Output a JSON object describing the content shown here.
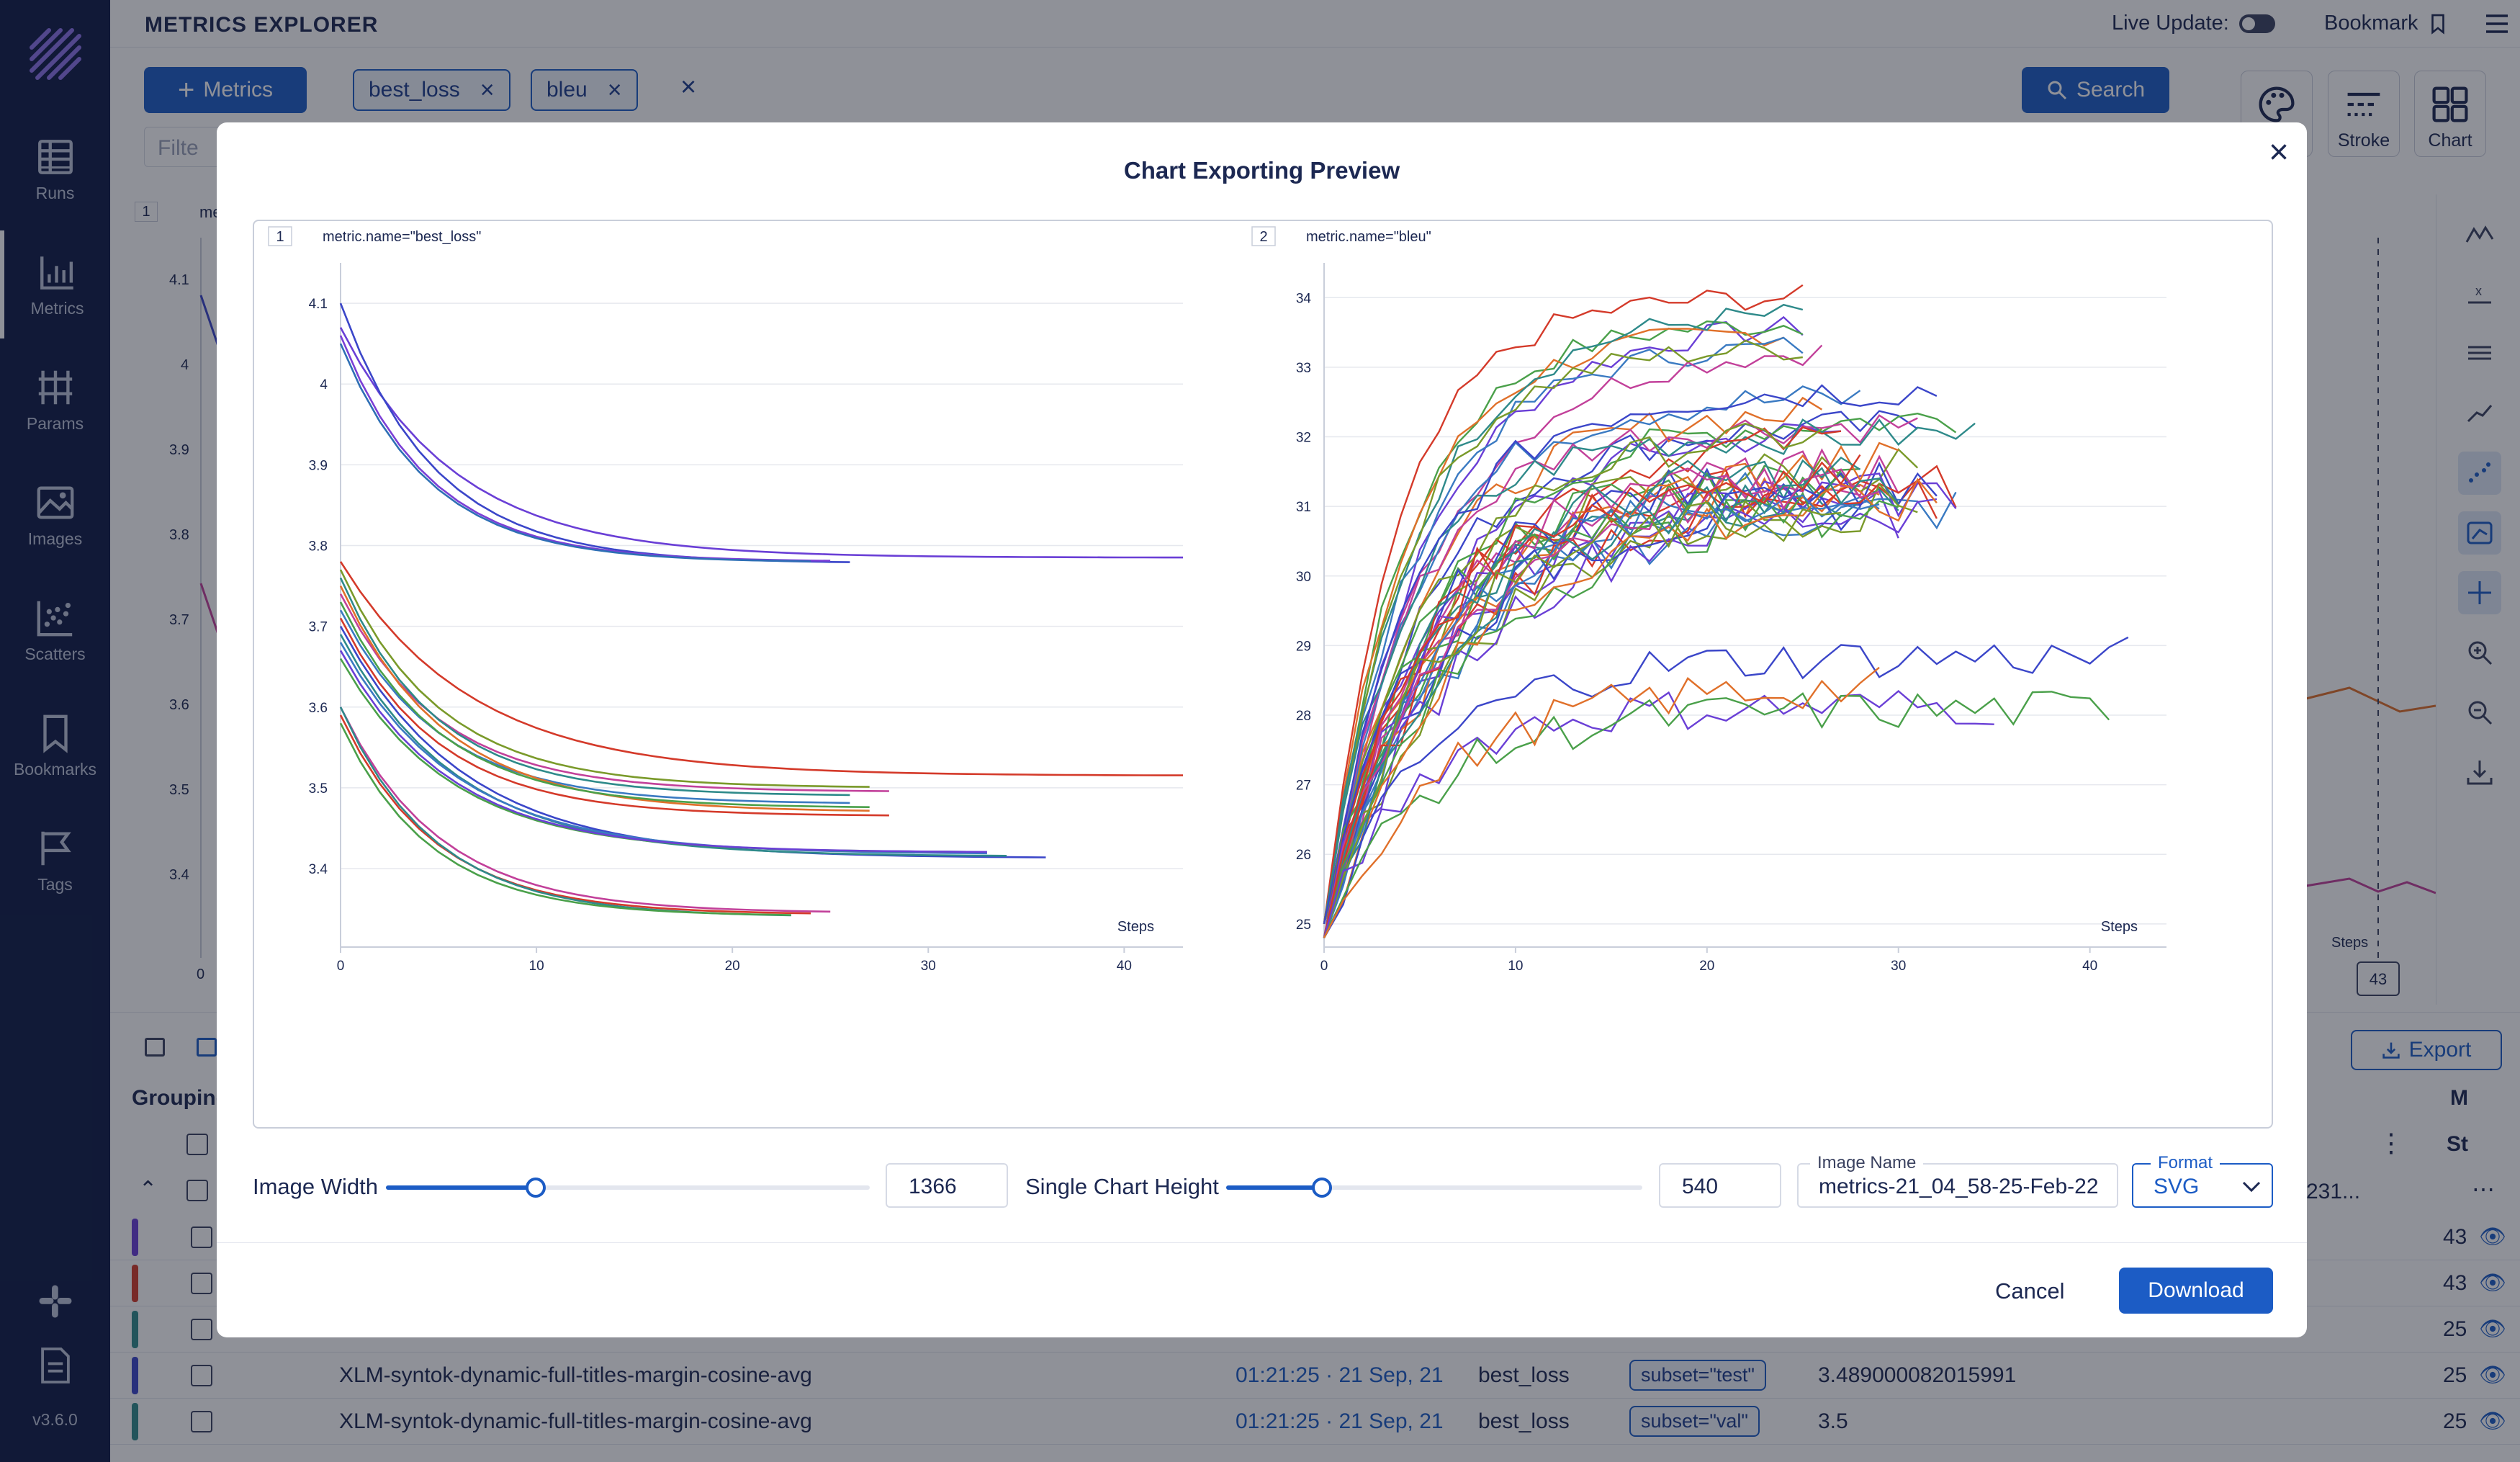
{
  "sidebar": {
    "items": [
      {
        "label": "Runs",
        "icon": "table-icon"
      },
      {
        "label": "Metrics",
        "icon": "bar-chart-icon"
      },
      {
        "label": "Params",
        "icon": "params-icon"
      },
      {
        "label": "Images",
        "icon": "image-icon"
      },
      {
        "label": "Scatters",
        "icon": "scatter-icon"
      },
      {
        "label": "Bookmarks",
        "icon": "bookmark-icon"
      },
      {
        "label": "Tags",
        "icon": "flag-icon"
      }
    ],
    "version": "v3.6.0"
  },
  "header": {
    "title": "METRICS EXPLORER",
    "live_update": "Live Update:",
    "bookmark": "Bookmark"
  },
  "toolbar": {
    "metrics_button": "Metrics",
    "chips": [
      "best_loss",
      "bleu"
    ],
    "filter_placeholder": "Filte",
    "search_button": "Search",
    "tiles": [
      "Stroke",
      "Chart"
    ]
  },
  "background": {
    "chart_index": "1",
    "chart_label": "me",
    "y_ticks": [
      "4.1",
      "4",
      "3.9",
      "3.8",
      "3.7",
      "3.6",
      "3.5",
      "3.4"
    ],
    "x_tick": "0",
    "steps_label": "Steps",
    "step_badge": "43",
    "export_button": "Export",
    "grouping_label": "Grouping",
    "table_partial_value": "231...",
    "col_m": "M",
    "col_st": "St",
    "rows": [
      {
        "color": "#6a3fd6",
        "name": "",
        "time": "",
        "metric": "",
        "context": "",
        "value": "",
        "step": "43"
      },
      {
        "color": "#d43a2a",
        "name": "",
        "time": "",
        "metric": "",
        "context": "",
        "value": "",
        "step": "43"
      },
      {
        "color": "#2e8a8a",
        "name": "",
        "time": "",
        "metric": "",
        "context": "",
        "value": "",
        "step": "25"
      },
      {
        "color": "#3b46c9",
        "name": "XLM-syntok-dynamic-full-titles-margin-cosine-avg",
        "time": "01:21:25 · 21 Sep, 21",
        "metric": "best_loss",
        "context": "subset=\"test\"",
        "value": "3.489000082015991",
        "step": "25"
      },
      {
        "color": "#2e8a8a",
        "name": "XLM-syntok-dynamic-full-titles-margin-cosine-avg",
        "time": "01:21:25 · 21 Sep, 21",
        "metric": "best_loss",
        "context": "subset=\"val\"",
        "value": "3.5",
        "step": "25"
      }
    ]
  },
  "modal": {
    "title": "Chart Exporting Preview",
    "image_width_label": "Image Width",
    "image_width_value": "1366",
    "image_width_fraction": 0.31,
    "chart_height_label": "Single Chart Height",
    "chart_height_value": "540",
    "chart_height_fraction": 0.23,
    "image_name_label": "Image Name",
    "image_name_value": "metrics-21_04_58-25-Feb-22",
    "format_label": "Format",
    "format_value": "SVG",
    "cancel": "Cancel",
    "download": "Download"
  },
  "colors": {
    "accent": "#1c5cc5",
    "sidebar": "#0f1a45",
    "text": "#1c2852"
  },
  "chart_data": [
    {
      "type": "line",
      "index": "1",
      "title": "metric.name=\"best_loss\"",
      "xlabel": "Steps",
      "xlim": [
        0,
        43
      ],
      "ylim": [
        3.31,
        4.15
      ],
      "x_ticks": [
        0,
        10,
        20,
        30,
        40
      ],
      "y_ticks": [
        3.4,
        3.5,
        3.6,
        3.7,
        3.8,
        3.9,
        4,
        4.1
      ],
      "grid": "horizontal",
      "series": [
        {
          "color": "#6a3fd6",
          "start": 4.07,
          "end": 3.785,
          "steps": 43,
          "rate": 0.17
        },
        {
          "color": "#3b46c9",
          "start": 4.1,
          "end": 3.778,
          "steps": 26,
          "rate": 0.21
        },
        {
          "color": "#7b3fd6",
          "start": 4.06,
          "end": 3.78,
          "steps": 25,
          "rate": 0.22
        },
        {
          "color": "#2e6fb5",
          "start": 4.05,
          "end": 3.779,
          "steps": 24,
          "rate": 0.22
        },
        {
          "color": "#d43a2a",
          "start": 3.78,
          "end": 3.515,
          "steps": 43,
          "rate": 0.15
        },
        {
          "color": "#7a9a2a",
          "start": 3.77,
          "end": 3.5,
          "steps": 27,
          "rate": 0.2
        },
        {
          "color": "#c2409a",
          "start": 3.74,
          "end": 3.495,
          "steps": 28,
          "rate": 0.2
        },
        {
          "color": "#2e8a8a",
          "start": 3.76,
          "end": 3.49,
          "steps": 26,
          "rate": 0.21
        },
        {
          "color": "#3a7ac2",
          "start": 3.72,
          "end": 3.48,
          "steps": 26,
          "rate": 0.2
        },
        {
          "color": "#e0702a",
          "start": 3.75,
          "end": 3.47,
          "steps": 27,
          "rate": 0.19
        },
        {
          "color": "#4aa04a",
          "start": 3.73,
          "end": 3.475,
          "steps": 27,
          "rate": 0.2
        },
        {
          "color": "#d43a2a",
          "start": 3.71,
          "end": 3.465,
          "steps": 28,
          "rate": 0.2
        },
        {
          "color": "#3b46c9",
          "start": 3.7,
          "end": 3.413,
          "steps": 36,
          "rate": 0.16
        },
        {
          "color": "#2e8a8a",
          "start": 3.69,
          "end": 3.415,
          "steps": 34,
          "rate": 0.17
        },
        {
          "color": "#3a7ac2",
          "start": 3.68,
          "end": 3.418,
          "steps": 33,
          "rate": 0.17
        },
        {
          "color": "#4aa04a",
          "start": 3.66,
          "end": 3.42,
          "steps": 32,
          "rate": 0.18
        },
        {
          "color": "#6a3fd6",
          "start": 3.67,
          "end": 3.42,
          "steps": 33,
          "rate": 0.18
        },
        {
          "color": "#c2409a",
          "start": 3.6,
          "end": 3.345,
          "steps": 25,
          "rate": 0.2
        },
        {
          "color": "#d43a2a",
          "start": 3.59,
          "end": 3.343,
          "steps": 24,
          "rate": 0.21
        },
        {
          "color": "#2e8a8a",
          "start": 3.6,
          "end": 3.34,
          "steps": 23,
          "rate": 0.21
        },
        {
          "color": "#4aa04a",
          "start": 3.58,
          "end": 3.341,
          "steps": 23,
          "rate": 0.22
        }
      ]
    },
    {
      "type": "line",
      "index": "2",
      "title": "metric.name=\"bleu\"",
      "xlabel": "Steps",
      "xlim": [
        0,
        44
      ],
      "ylim": [
        24.75,
        34.5
      ],
      "x_ticks": [
        0,
        10,
        20,
        30,
        40
      ],
      "y_ticks": [
        25,
        26,
        27,
        28,
        29,
        30,
        31,
        32,
        33,
        34
      ],
      "grid": "horizontal",
      "bands": [
        {
          "count": 8,
          "start": 25.0,
          "plateau": 33.6,
          "min_steps": 24,
          "max_steps": 26,
          "rate": 0.22,
          "noise": 0.18
        },
        {
          "count": 10,
          "start": 25.0,
          "plateau": 32.4,
          "min_steps": 26,
          "max_steps": 37,
          "rate": 0.2,
          "noise": 0.25
        },
        {
          "count": 26,
          "start": 24.8,
          "plateau": 31.3,
          "min_steps": 27,
          "max_steps": 33,
          "rate": 0.17,
          "noise": 0.35
        },
        {
          "count": 4,
          "start": 24.8,
          "plateau": 28.5,
          "min_steps": 27,
          "max_steps": 44,
          "rate": 0.2,
          "noise": 0.3
        }
      ],
      "palette": [
        "#6a3fd6",
        "#4aa04a",
        "#e0702a",
        "#3a7ac2",
        "#c2409a",
        "#2e8a8a",
        "#d43a2a",
        "#7a9a2a",
        "#3b46c9"
      ]
    }
  ]
}
